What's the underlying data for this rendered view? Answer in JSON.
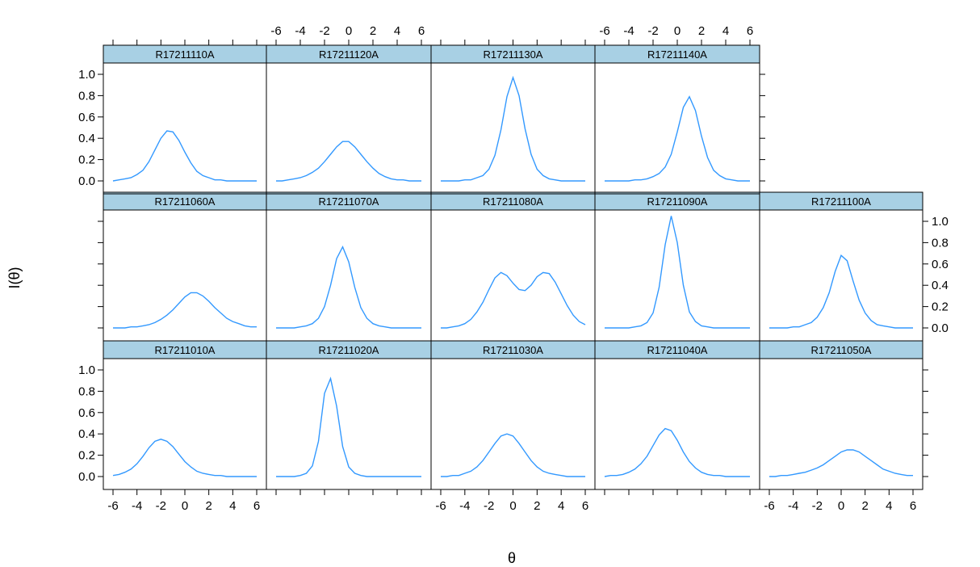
{
  "chart_data": {
    "type": "line",
    "xlabel": "θ",
    "ylabel": "I(θ)",
    "xlim": [
      -6,
      6
    ],
    "ylim": [
      0,
      1.0
    ],
    "x_ticks": [
      -6,
      -4,
      -2,
      0,
      2,
      4,
      6
    ],
    "y_ticks": [
      0.0,
      0.2,
      0.4,
      0.6,
      0.8,
      1.0
    ],
    "x_tick_labels": [
      "-6",
      "-4",
      "-2",
      "0",
      "2",
      "4",
      "6"
    ],
    "y_tick_labels": [
      "0.0",
      "0.2",
      "0.4",
      "0.6",
      "0.8",
      "1.0"
    ],
    "line_color": "#3399ff",
    "strip_color": "#a8d0e4",
    "x": [
      -6,
      -5.5,
      -5,
      -4.5,
      -4,
      -3.5,
      -3,
      -2.5,
      -2,
      -1.5,
      -1,
      -0.5,
      0,
      0.5,
      1,
      1.5,
      2,
      2.5,
      3,
      3.5,
      4,
      4.5,
      5,
      5.5,
      6
    ],
    "panels": [
      {
        "name": "R17211010A",
        "row": 0,
        "col": 0,
        "values": [
          0.01,
          0.02,
          0.04,
          0.07,
          0.12,
          0.19,
          0.27,
          0.33,
          0.35,
          0.33,
          0.28,
          0.21,
          0.14,
          0.09,
          0.05,
          0.03,
          0.02,
          0.01,
          0.01,
          0.0,
          0.0,
          0.0,
          0.0,
          0.0,
          0.0
        ]
      },
      {
        "name": "R17211020A",
        "row": 0,
        "col": 1,
        "values": [
          0.0,
          0.0,
          0.0,
          0.0,
          0.01,
          0.03,
          0.1,
          0.33,
          0.78,
          0.92,
          0.66,
          0.28,
          0.09,
          0.03,
          0.01,
          0.0,
          0.0,
          0.0,
          0.0,
          0.0,
          0.0,
          0.0,
          0.0,
          0.0,
          0.0
        ]
      },
      {
        "name": "R17211030A",
        "row": 0,
        "col": 2,
        "values": [
          0.0,
          0.0,
          0.01,
          0.01,
          0.03,
          0.05,
          0.09,
          0.15,
          0.23,
          0.31,
          0.38,
          0.4,
          0.38,
          0.31,
          0.23,
          0.15,
          0.09,
          0.05,
          0.03,
          0.02,
          0.01,
          0.0,
          0.0,
          0.0,
          0.0
        ]
      },
      {
        "name": "R17211040A",
        "row": 0,
        "col": 3,
        "values": [
          0.0,
          0.01,
          0.01,
          0.02,
          0.04,
          0.07,
          0.12,
          0.19,
          0.29,
          0.39,
          0.45,
          0.43,
          0.34,
          0.23,
          0.14,
          0.08,
          0.04,
          0.02,
          0.01,
          0.01,
          0.0,
          0.0,
          0.0,
          0.0,
          0.0
        ]
      },
      {
        "name": "R17211050A",
        "row": 0,
        "col": 4,
        "values": [
          0.0,
          0.0,
          0.01,
          0.01,
          0.02,
          0.03,
          0.04,
          0.06,
          0.08,
          0.11,
          0.15,
          0.19,
          0.23,
          0.25,
          0.25,
          0.23,
          0.19,
          0.15,
          0.11,
          0.07,
          0.05,
          0.03,
          0.02,
          0.01,
          0.01
        ]
      },
      {
        "name": "R17211060A",
        "row": 1,
        "col": 0,
        "values": [
          0.0,
          0.0,
          0.0,
          0.01,
          0.01,
          0.02,
          0.03,
          0.05,
          0.08,
          0.12,
          0.17,
          0.23,
          0.29,
          0.33,
          0.33,
          0.3,
          0.25,
          0.19,
          0.14,
          0.09,
          0.06,
          0.04,
          0.02,
          0.01,
          0.01
        ]
      },
      {
        "name": "R17211070A",
        "row": 1,
        "col": 1,
        "values": [
          0.0,
          0.0,
          0.0,
          0.0,
          0.01,
          0.02,
          0.04,
          0.09,
          0.2,
          0.4,
          0.65,
          0.76,
          0.62,
          0.38,
          0.19,
          0.09,
          0.04,
          0.02,
          0.01,
          0.0,
          0.0,
          0.0,
          0.0,
          0.0,
          0.0
        ]
      },
      {
        "name": "R17211080A",
        "row": 1,
        "col": 2,
        "values": [
          0.0,
          0.0,
          0.01,
          0.02,
          0.04,
          0.08,
          0.15,
          0.24,
          0.36,
          0.47,
          0.52,
          0.49,
          0.42,
          0.36,
          0.35,
          0.4,
          0.48,
          0.52,
          0.51,
          0.43,
          0.32,
          0.21,
          0.12,
          0.06,
          0.03
        ]
      },
      {
        "name": "R17211090A",
        "row": 1,
        "col": 3,
        "values": [
          0.0,
          0.0,
          0.0,
          0.0,
          0.0,
          0.01,
          0.02,
          0.05,
          0.14,
          0.38,
          0.78,
          1.05,
          0.8,
          0.4,
          0.15,
          0.06,
          0.02,
          0.01,
          0.0,
          0.0,
          0.0,
          0.0,
          0.0,
          0.0,
          0.0
        ]
      },
      {
        "name": "R17211100A",
        "row": 1,
        "col": 4,
        "values": [
          0.0,
          0.0,
          0.0,
          0.0,
          0.01,
          0.01,
          0.03,
          0.05,
          0.1,
          0.19,
          0.33,
          0.53,
          0.68,
          0.63,
          0.44,
          0.26,
          0.14,
          0.07,
          0.03,
          0.02,
          0.01,
          0.0,
          0.0,
          0.0,
          0.0
        ]
      },
      {
        "name": "R17211110A",
        "row": 2,
        "col": 0,
        "values": [
          0.0,
          0.01,
          0.02,
          0.03,
          0.06,
          0.1,
          0.18,
          0.29,
          0.4,
          0.47,
          0.46,
          0.38,
          0.27,
          0.17,
          0.09,
          0.05,
          0.03,
          0.01,
          0.01,
          0.0,
          0.0,
          0.0,
          0.0,
          0.0,
          0.0
        ]
      },
      {
        "name": "R17211120A",
        "row": 2,
        "col": 1,
        "values": [
          0.0,
          0.0,
          0.01,
          0.02,
          0.03,
          0.05,
          0.08,
          0.12,
          0.18,
          0.25,
          0.32,
          0.37,
          0.37,
          0.32,
          0.25,
          0.18,
          0.12,
          0.07,
          0.04,
          0.02,
          0.01,
          0.01,
          0.0,
          0.0,
          0.0
        ]
      },
      {
        "name": "R17211130A",
        "row": 2,
        "col": 2,
        "values": [
          0.0,
          0.0,
          0.0,
          0.0,
          0.01,
          0.01,
          0.03,
          0.05,
          0.11,
          0.24,
          0.48,
          0.79,
          0.97,
          0.8,
          0.49,
          0.25,
          0.11,
          0.05,
          0.02,
          0.01,
          0.0,
          0.0,
          0.0,
          0.0,
          0.0
        ]
      },
      {
        "name": "R17211140A",
        "row": 2,
        "col": 3,
        "values": [
          0.0,
          0.0,
          0.0,
          0.0,
          0.0,
          0.01,
          0.01,
          0.02,
          0.04,
          0.07,
          0.13,
          0.25,
          0.46,
          0.69,
          0.79,
          0.66,
          0.42,
          0.22,
          0.1,
          0.05,
          0.02,
          0.01,
          0.0,
          0.0,
          0.0
        ]
      }
    ]
  }
}
